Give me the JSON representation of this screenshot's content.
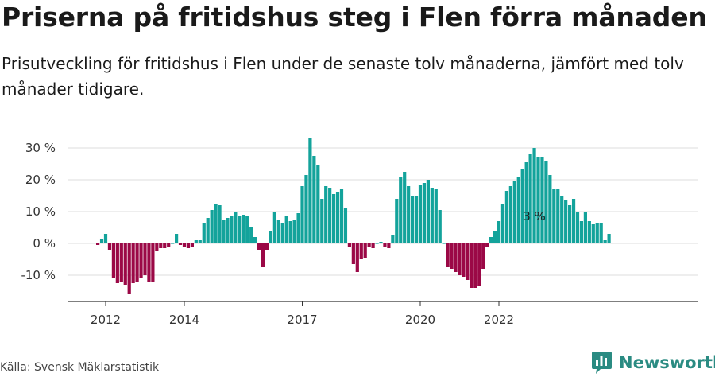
{
  "title": "Priserna på fritidshus steg i Flen förra månaden",
  "subtitle": "Prisutveckling för fritidshus i Flen under de senaste tolv månaderna, jämfört med tolv månader tidigare.",
  "source": "Källa: Svensk Mäklarstatistik",
  "brand": {
    "name": "Newsworthy",
    "icon": "bar-chart-logo-icon"
  },
  "colors": {
    "positive": "#13a39b",
    "negative": "#9b0846",
    "grid": "#dddddd",
    "axis": "#333333"
  },
  "chart_data": {
    "type": "bar",
    "title": "",
    "xlabel": "",
    "ylabel": "",
    "ylim": [
      -19,
      30
    ],
    "yticks": [
      30,
      20,
      10,
      0,
      -10
    ],
    "ytick_labels": [
      "30 %",
      "20 %",
      "10 %",
      "0 %",
      "-10 %"
    ],
    "xtick_labels": [
      {
        "label": "2012",
        "index": 2
      },
      {
        "label": "2014",
        "index": 22
      },
      {
        "label": "2017",
        "index": 52
      },
      {
        "label": "2020",
        "index": 82
      },
      {
        "label": "2022",
        "index": 102
      }
    ],
    "annotation": {
      "text": "3 %",
      "index": 111
    },
    "series": [
      {
        "unit": "%",
        "values": [
          -0.5,
          1.5,
          3,
          -2,
          -11,
          -12.5,
          -12,
          -13,
          -16,
          -12.5,
          -12,
          -11,
          -10,
          -12,
          -12,
          -2.5,
          -1.5,
          -1.5,
          -1,
          0,
          3,
          -0.5,
          -1,
          -1.5,
          -1,
          1,
          1,
          6.5,
          8,
          10.5,
          12.5,
          12,
          7.5,
          8,
          8.5,
          10,
          8.5,
          9,
          8.5,
          5,
          2,
          -2,
          -7.5,
          -2,
          4,
          10,
          7.5,
          6.5,
          8.5,
          7,
          7.5,
          9.5,
          18,
          21.5,
          33,
          27.5,
          24.5,
          14,
          18,
          17.5,
          15.5,
          16,
          17,
          11,
          -1,
          -6.5,
          -9,
          -5,
          -4.5,
          -1,
          -1.5,
          0,
          0.5,
          -1,
          -1.5,
          2.5,
          14,
          21,
          22.5,
          18,
          15,
          15,
          18.5,
          19,
          20,
          17.5,
          17,
          10.5,
          0,
          -7.5,
          -8,
          -9,
          -10,
          -10.5,
          -11.5,
          -14,
          -14,
          -13.5,
          -8,
          -1,
          2,
          4,
          7,
          12.5,
          16.5,
          18,
          19.5,
          21,
          23.5,
          25.5,
          28,
          30,
          27,
          27,
          26,
          21.5,
          17,
          17,
          15,
          13.5,
          12,
          14,
          10,
          7,
          10,
          7,
          6,
          6.5,
          6.5,
          1,
          3
        ]
      }
    ]
  }
}
